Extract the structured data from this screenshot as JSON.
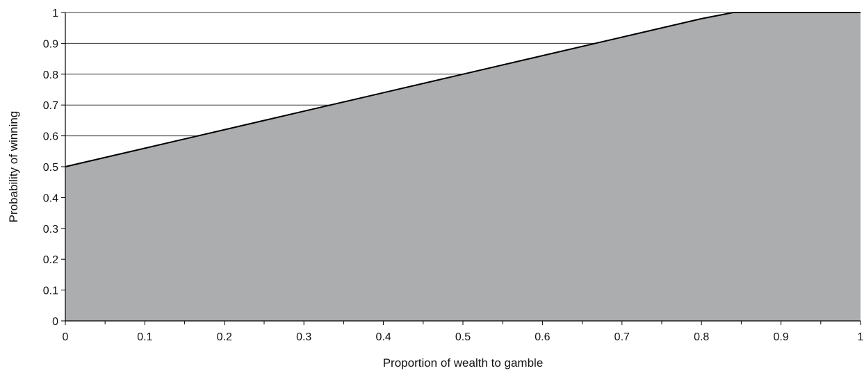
{
  "chart_data": {
    "type": "area",
    "xlabel": "Proportion of wealth to gamble",
    "ylabel": "Probability of winning",
    "xlim": [
      0,
      1
    ],
    "ylim": [
      0,
      1
    ],
    "x_ticks": [
      "0",
      "0.1",
      "0.2",
      "0.3",
      "0.4",
      "0.5",
      "0.6",
      "0.7",
      "0.8",
      "0.9",
      "1"
    ],
    "y_ticks": [
      "0",
      "0.1",
      "0.2",
      "0.3",
      "0.4",
      "0.5",
      "0.6",
      "0.7",
      "0.8",
      "0.9",
      "1"
    ],
    "grid": "horizontal",
    "legend": "none",
    "series": [
      {
        "x": [
          0,
          0.1,
          0.2,
          0.3,
          0.4,
          0.5,
          0.6,
          0.7,
          0.8,
          0.84,
          0.9,
          1
        ],
        "y": [
          0.5,
          0.56,
          0.62,
          0.68,
          0.74,
          0.8,
          0.86,
          0.92,
          0.98,
          1.0,
          1.0,
          1.0
        ]
      }
    ],
    "colors": {
      "fill": "#acadaf",
      "line": "#000000",
      "grid": "#333333"
    }
  }
}
